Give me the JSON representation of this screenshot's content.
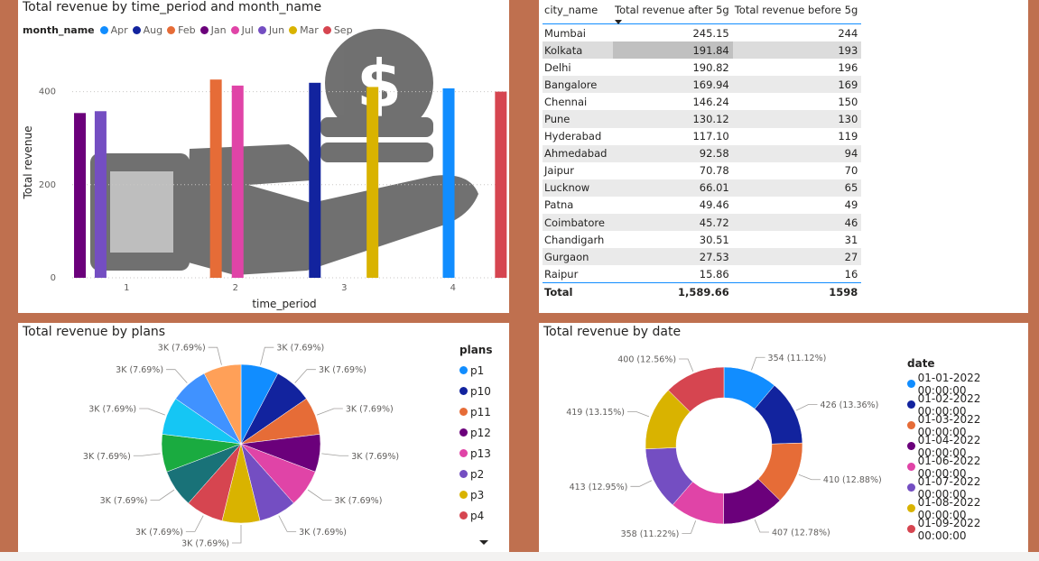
{
  "colors": {
    "background": "#bf704f",
    "series": [
      "#118dff",
      "#12239e",
      "#e66c37",
      "#6b007b",
      "#e044a7",
      "#744ec2",
      "#d9b300",
      "#d64550",
      "#197278",
      "#1aab40",
      "#15c6f4",
      "#4092ff",
      "#ffa058"
    ]
  },
  "bar_chart": {
    "title": "Total revenue by time_period and month_name",
    "legend_title": "month_name",
    "legend": [
      {
        "name": "Apr",
        "color": "#118dff"
      },
      {
        "name": "Aug",
        "color": "#12239e"
      },
      {
        "name": "Feb",
        "color": "#e66c37"
      },
      {
        "name": "Jan",
        "color": "#6b007b"
      },
      {
        "name": "Jul",
        "color": "#e044a7"
      },
      {
        "name": "Jun",
        "color": "#744ec2"
      },
      {
        "name": "Mar",
        "color": "#d9b300"
      },
      {
        "name": "Sep",
        "color": "#d64550"
      }
    ],
    "background_icon": "money-hand-icon"
  },
  "table": {
    "headers": [
      "city_name",
      "Total revenue after 5g",
      "Total revenue before 5g"
    ],
    "rows": [
      [
        "Mumbai",
        "245.15",
        "244"
      ],
      [
        "Kolkata",
        "191.84",
        "193"
      ],
      [
        "Delhi",
        "190.82",
        "196"
      ],
      [
        "Bangalore",
        "169.94",
        "169"
      ],
      [
        "Chennai",
        "146.24",
        "150"
      ],
      [
        "Pune",
        "130.12",
        "130"
      ],
      [
        "Hyderabad",
        "117.10",
        "119"
      ],
      [
        "Ahmedabad",
        "92.58",
        "94"
      ],
      [
        "Jaipur",
        "70.78",
        "70"
      ],
      [
        "Lucknow",
        "66.01",
        "65"
      ],
      [
        "Patna",
        "49.46",
        "49"
      ],
      [
        "Coimbatore",
        "45.72",
        "46"
      ],
      [
        "Chandigarh",
        "30.51",
        "31"
      ],
      [
        "Gurgaon",
        "27.53",
        "27"
      ],
      [
        "Raipur",
        "15.86",
        "16"
      ]
    ],
    "total": [
      "Total",
      "1,589.66",
      "1598"
    ]
  },
  "pie_chart": {
    "title": "Total revenue by plans",
    "legend_title": "plans",
    "legend": [
      {
        "name": "p1",
        "color": "#118dff"
      },
      {
        "name": "p10",
        "color": "#12239e"
      },
      {
        "name": "p11",
        "color": "#e66c37"
      },
      {
        "name": "p12",
        "color": "#6b007b"
      },
      {
        "name": "p13",
        "color": "#e044a7"
      },
      {
        "name": "p2",
        "color": "#744ec2"
      },
      {
        "name": "p3",
        "color": "#d9b300"
      },
      {
        "name": "p4",
        "color": "#d64550"
      }
    ],
    "more_icon": "chevron-down-icon"
  },
  "donut_chart": {
    "title": "Total revenue by date",
    "legend_title": "date",
    "legend": [
      {
        "name": "01-01-2022 00:00:00",
        "color": "#118dff"
      },
      {
        "name": "01-02-2022 00:00:00",
        "color": "#12239e"
      },
      {
        "name": "01-03-2022 00:00:00",
        "color": "#e66c37"
      },
      {
        "name": "01-04-2022 00:00:00",
        "color": "#6b007b"
      },
      {
        "name": "01-06-2022 00:00:00",
        "color": "#e044a7"
      },
      {
        "name": "01-07-2022 00:00:00",
        "color": "#744ec2"
      },
      {
        "name": "01-08-2022 00:00:00",
        "color": "#d9b300"
      },
      {
        "name": "01-09-2022 00:00:00",
        "color": "#d64550"
      }
    ]
  },
  "chart_data": [
    {
      "type": "bar",
      "title": "Total revenue by time_period and month_name",
      "xlabel": "time_period",
      "ylabel": "Total revenue",
      "ylim": [
        0,
        500
      ],
      "yticks": [
        "0",
        "200",
        "400"
      ],
      "categories": [
        "1",
        "2",
        "3",
        "4"
      ],
      "grid": true,
      "legend_position": "top",
      "series": [
        {
          "name": "Jan",
          "color": "#6b007b",
          "category": "1",
          "value": 354
        },
        {
          "name": "Jun",
          "color": "#744ec2",
          "category": "1",
          "value": 358
        },
        {
          "name": "Feb",
          "color": "#e66c37",
          "category": "2",
          "value": 426
        },
        {
          "name": "Jul",
          "color": "#e044a7",
          "category": "2",
          "value": 413
        },
        {
          "name": "Aug",
          "color": "#12239e",
          "category": "3",
          "value": 419
        },
        {
          "name": "Mar",
          "color": "#d9b300",
          "category": "3",
          "value": 410
        },
        {
          "name": "Apr",
          "color": "#118dff",
          "category": "4",
          "value": 407
        },
        {
          "name": "Sep",
          "color": "#d64550",
          "category": "4",
          "value": 400
        }
      ]
    },
    {
      "type": "pie",
      "title": "Total revenue by plans",
      "legend_position": "right",
      "slices": [
        {
          "name": "p1",
          "color": "#118dff",
          "label": "3K (7.69%)",
          "value": 7.69
        },
        {
          "name": "p10",
          "color": "#12239e",
          "label": "3K (7.69%)",
          "value": 7.69
        },
        {
          "name": "p11",
          "color": "#e66c37",
          "label": "3K (7.69%)",
          "value": 7.69
        },
        {
          "name": "p12",
          "color": "#6b007b",
          "label": "3K (7.69%)",
          "value": 7.69
        },
        {
          "name": "p13",
          "color": "#e044a7",
          "label": "3K (7.69%)",
          "value": 7.69
        },
        {
          "name": "p2",
          "color": "#744ec2",
          "label": "3K (7.69%)",
          "value": 7.69
        },
        {
          "name": "p3",
          "color": "#d9b300",
          "label": "3K (7.69%)",
          "value": 7.69
        },
        {
          "name": "p4",
          "color": "#d64550",
          "label": "3K (7.69%)",
          "value": 7.69
        },
        {
          "name": "",
          "color": "#197278",
          "label": "3K (7.69%)",
          "value": 7.69
        },
        {
          "name": "",
          "color": "#1aab40",
          "label": "3K (7.69%)",
          "value": 7.69
        },
        {
          "name": "",
          "color": "#15c6f4",
          "label": "3K (7.69%)",
          "value": 7.69
        },
        {
          "name": "",
          "color": "#4092ff",
          "label": "3K (7.69%)",
          "value": 7.69
        },
        {
          "name": "",
          "color": "#ffa058",
          "label": "3K (7.69%)",
          "value": 7.69
        }
      ]
    },
    {
      "type": "pie",
      "title": "Total revenue by date",
      "donut": true,
      "legend_position": "right",
      "slices": [
        {
          "name": "01-01-2022 00:00:00",
          "color": "#118dff",
          "value": 354,
          "label": "354 (11.12%)"
        },
        {
          "name": "01-02-2022 00:00:00",
          "color": "#12239e",
          "value": 426,
          "label": "426 (13.36%)"
        },
        {
          "name": "01-03-2022 00:00:00",
          "color": "#e66c37",
          "value": 410,
          "label": "410 (12.88%)"
        },
        {
          "name": "01-04-2022 00:00:00",
          "color": "#6b007b",
          "value": 407,
          "label": "407 (12.78%)"
        },
        {
          "name": "01-06-2022 00:00:00",
          "color": "#e044a7",
          "value": 358,
          "label": "358 (11.22%)"
        },
        {
          "name": "01-07-2022 00:00:00",
          "color": "#744ec2",
          "value": 413,
          "label": "413 (12.95%)"
        },
        {
          "name": "01-08-2022 00:00:00",
          "color": "#d9b300",
          "value": 419,
          "label": "419 (13.15%)"
        },
        {
          "name": "01-09-2022 00:00:00",
          "color": "#d64550",
          "value": 400,
          "label": "400 (12.56%)"
        }
      ]
    }
  ]
}
